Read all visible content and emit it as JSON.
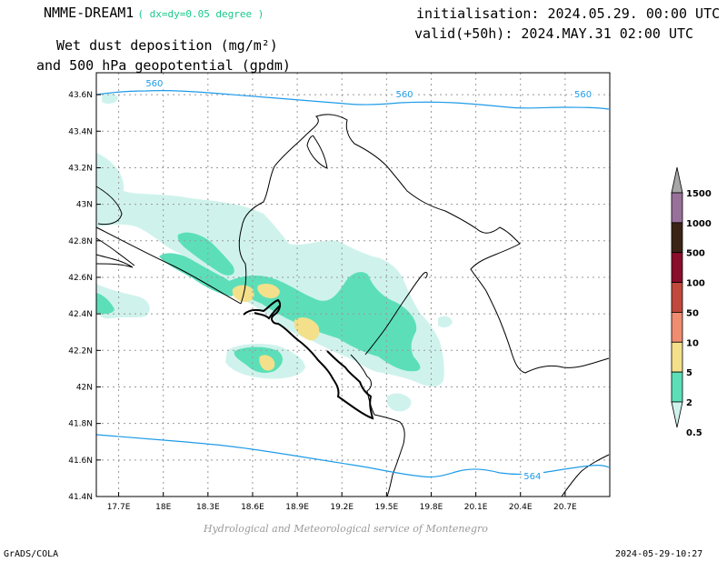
{
  "header": {
    "model": "NMME-DREAM1",
    "resolution": "( dx=dy=0.05 degree )",
    "title_line1": "Wet dust deposition (mg/m²)",
    "title_line2": "and 500 hPa geopotential (gpdm)",
    "init": "initialisation: 2024.05.29. 00:00 UTC",
    "valid": "valid(+50h): 2024.MAY.31 02:00 UTC"
  },
  "map": {
    "lon_ticks": [
      "17.7E",
      "18E",
      "18.3E",
      "18.6E",
      "18.9E",
      "19.2E",
      "19.5E",
      "19.8E",
      "20.1E",
      "20.4E",
      "20.7E"
    ],
    "lat_ticks": [
      "43.6N",
      "43.4N",
      "43.2N",
      "43N",
      "42.8N",
      "42.6N",
      "42.4N",
      "42.2N",
      "42N",
      "41.8N",
      "41.6N",
      "41.4N"
    ],
    "lon_range": [
      17.55,
      21.0
    ],
    "lat_range": [
      41.4,
      43.72
    ],
    "contour_labels": [
      {
        "text": "560",
        "lon": 17.94,
        "lat": 43.66
      },
      {
        "text": "560",
        "lon": 19.62,
        "lat": 43.6
      },
      {
        "text": "560",
        "lon": 20.82,
        "lat": 43.6
      },
      {
        "text": "564",
        "lon": 20.48,
        "lat": 41.51
      }
    ],
    "colors": {
      "contour": "#1e9be8",
      "grid": "#999999",
      "border": "#000000",
      "frame": "#000000"
    }
  },
  "colorbar": {
    "levels": [
      "1500",
      "1000",
      "500",
      "100",
      "50",
      "10",
      "5",
      "2",
      "0.5"
    ],
    "colors": [
      "#a7a7a7",
      "#98719a",
      "#3b2415",
      "#8a0d2c",
      "#c0483c",
      "#f08c70",
      "#f4e08a",
      "#5cdfb9",
      "#cff3ec"
    ]
  },
  "fill_colors": {
    "c05": "#cff3ec",
    "c2": "#5cdfb9",
    "c5": "#f4e08a"
  },
  "footer": {
    "credit": "Hydrological and Meteorological service of Montenegro",
    "software": "GrADS/COLA",
    "timestamp": "2024-05-29-10:27"
  }
}
